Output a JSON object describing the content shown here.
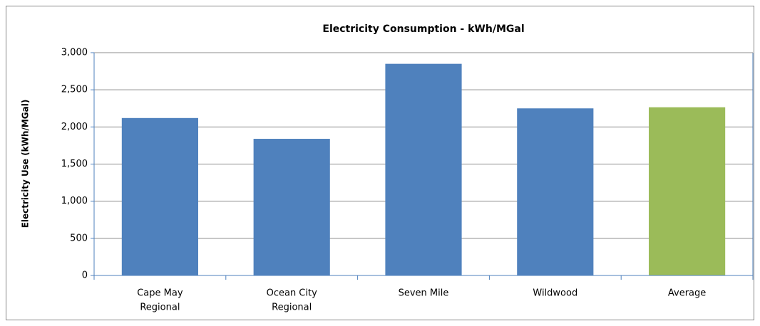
{
  "chart_data": {
    "type": "bar",
    "title": "Electricity Consumption - kWh/MGal",
    "y_label": "Electricity Use (kWh/MGal)",
    "categories": [
      [
        "Cape May",
        "Regional"
      ],
      [
        "Ocean City",
        "Regional"
      ],
      [
        "Seven Mile"
      ],
      [
        "Wildwood"
      ],
      [
        "Average"
      ]
    ],
    "values": [
      2120,
      1840,
      2850,
      2250,
      2265
    ],
    "colors": [
      "#4f81bd",
      "#4f81bd",
      "#4f81bd",
      "#4f81bd",
      "#9bbb59"
    ],
    "ylim": [
      0,
      3000
    ],
    "yticks": [
      0,
      500,
      {
        "value": 1000,
        "label": "1,000"
      },
      {
        "value": 1500,
        "label": "1,500"
      },
      {
        "value": 2000,
        "label": "2,000"
      },
      {
        "value": 2500,
        "label": "2,500"
      },
      {
        "value": 3000,
        "label": "3,000"
      }
    ],
    "grid": true
  }
}
